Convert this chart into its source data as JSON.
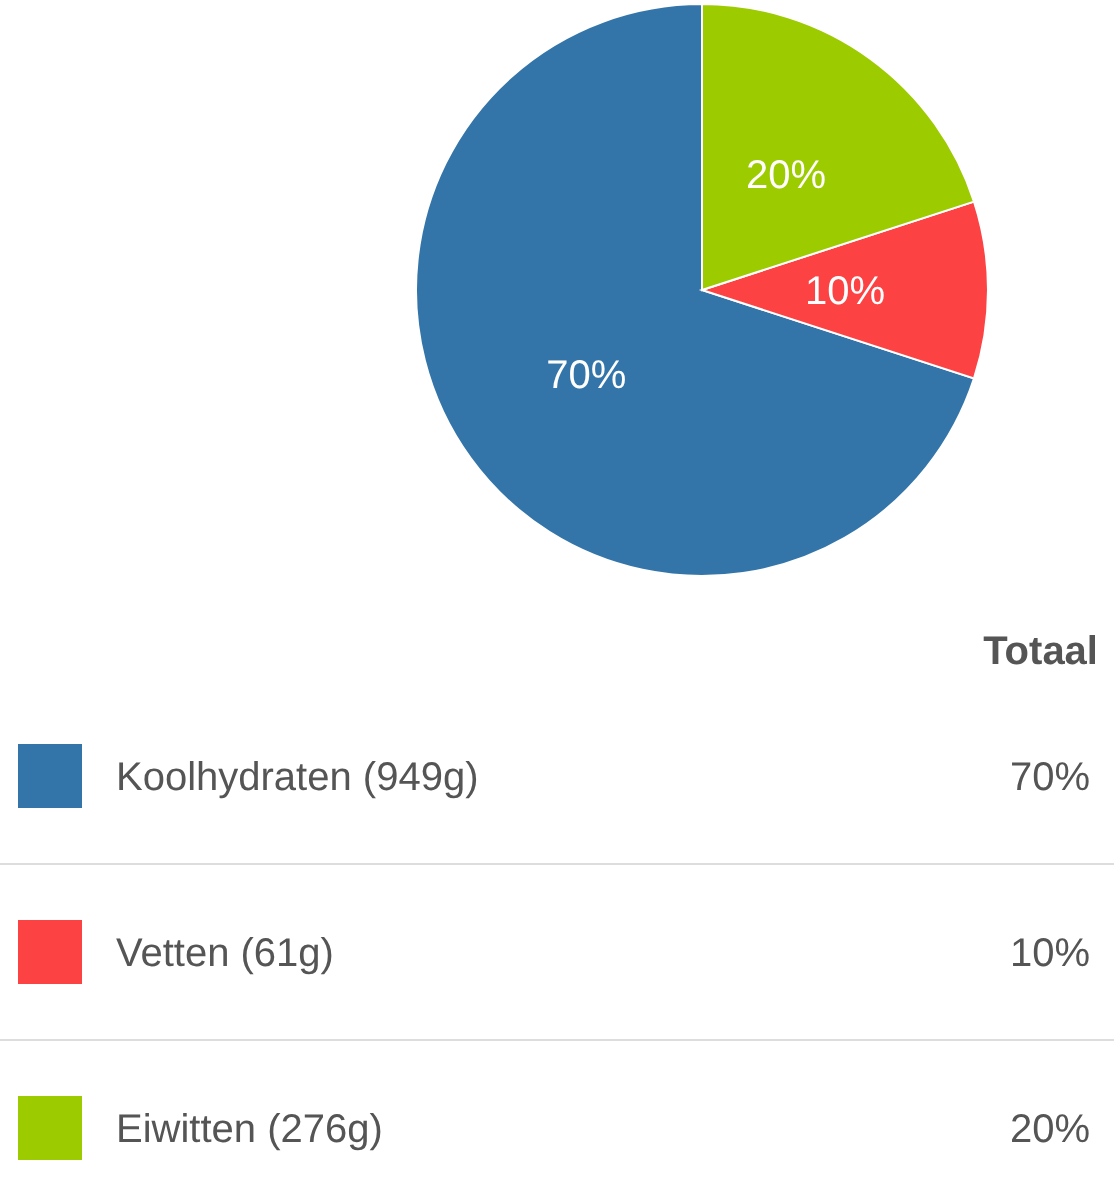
{
  "chart_data": {
    "type": "pie",
    "categories": [
      "Koolhydraten (949g)",
      "Vetten (61g)",
      "Eiwitten (276g)"
    ],
    "values": [
      70,
      10,
      20
    ],
    "colors": [
      "#3375a9",
      "#fd4243",
      "#9ccb00"
    ],
    "value_labels": [
      "70%",
      "10%",
      "20%"
    ],
    "legend": "bottom",
    "legend_title": "Totaal"
  }
}
